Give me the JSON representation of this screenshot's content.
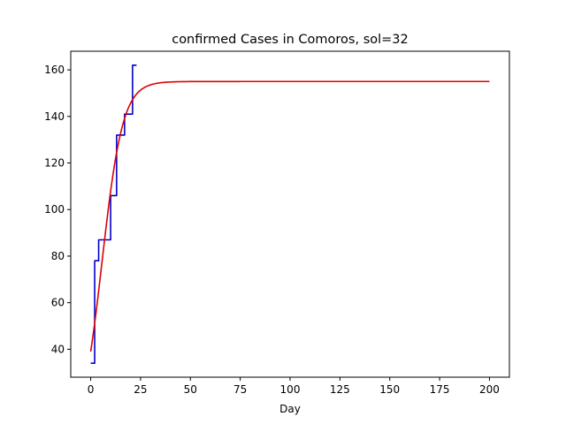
{
  "chart_data": {
    "type": "line",
    "title": "confirmed Cases in Comoros, sol=32",
    "xlabel": "Day",
    "ylabel": "",
    "xlim": [
      -10,
      210
    ],
    "ylim": [
      28,
      168
    ],
    "xticks": [
      0,
      25,
      50,
      75,
      100,
      125,
      150,
      175,
      200
    ],
    "yticks": [
      40,
      60,
      80,
      100,
      120,
      140,
      160
    ],
    "grid": false,
    "series": [
      {
        "color": "#0000cc",
        "step": true,
        "x": [
          0,
          1,
          2,
          3,
          4,
          5,
          6,
          7,
          8,
          9,
          10,
          11,
          12,
          13,
          14,
          15,
          16,
          17,
          18,
          19,
          20,
          21,
          22,
          23
        ],
        "y": [
          34,
          34,
          78,
          78,
          87,
          87,
          87,
          87,
          87,
          87,
          106,
          106,
          106,
          132,
          132,
          132,
          132,
          141,
          141,
          141,
          141,
          162,
          162,
          162
        ]
      },
      {
        "color": "#dd0000",
        "step": false,
        "model": {
          "type": "logistic",
          "min": 39,
          "max": 155,
          "initial_slope": 5.6
        },
        "x_range": [
          0,
          200
        ]
      }
    ]
  }
}
